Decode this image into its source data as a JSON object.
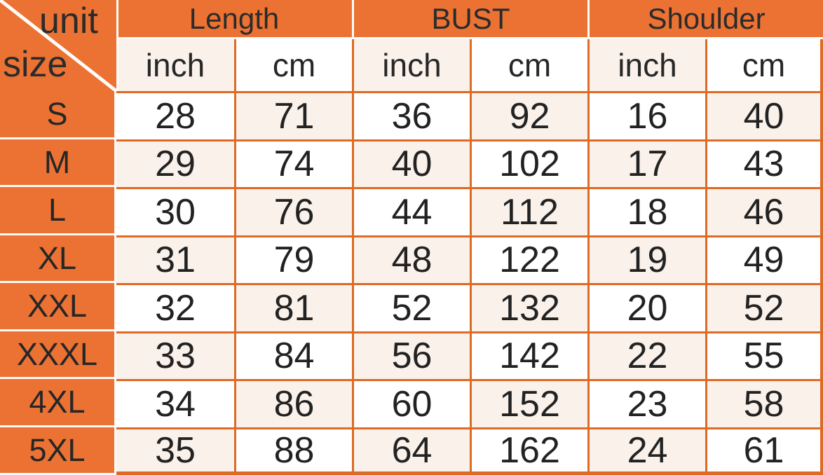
{
  "table": {
    "corner": {
      "top_label": "unit",
      "bottom_label": "size"
    },
    "groups": [
      {
        "label": "Length"
      },
      {
        "label": "BUST"
      },
      {
        "label": "Shoulder"
      }
    ],
    "unit_headers": [
      "inch",
      "cm",
      "inch",
      "cm",
      "inch",
      "cm"
    ],
    "rows": [
      {
        "size": "S",
        "values": [
          "28",
          "71",
          "36",
          "92",
          "16",
          "40"
        ]
      },
      {
        "size": "M",
        "values": [
          "29",
          "74",
          "40",
          "102",
          "17",
          "43"
        ]
      },
      {
        "size": "L",
        "values": [
          "30",
          "76",
          "44",
          "112",
          "18",
          "46"
        ]
      },
      {
        "size": "XL",
        "values": [
          "31",
          "79",
          "48",
          "122",
          "19",
          "49"
        ]
      },
      {
        "size": "XXL",
        "values": [
          "32",
          "81",
          "52",
          "132",
          "20",
          "52"
        ]
      },
      {
        "size": "XXXL",
        "values": [
          "33",
          "84",
          "56",
          "142",
          "22",
          "55"
        ]
      },
      {
        "size": "4XL",
        "values": [
          "34",
          "86",
          "60",
          "152",
          "23",
          "58"
        ]
      },
      {
        "size": "5XL",
        "values": [
          "35",
          "88",
          "64",
          "162",
          "24",
          "61"
        ]
      }
    ],
    "colors": {
      "orange_fill": "#EB7233",
      "orange_border": "#DD6A25",
      "cream_cell": "#F9F1EA",
      "white_cell": "#FFFFFF",
      "grid_line_white": "#FEFCF9",
      "text": "#272727"
    }
  }
}
